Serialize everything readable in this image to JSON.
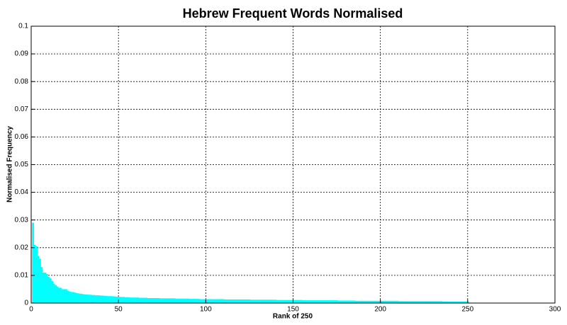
{
  "chart_data": {
    "type": "bar",
    "title": "Hebrew Frequent Words Normalised",
    "x_label": "Rank of 250",
    "y_label": "Normalised Frequency",
    "x": [
      1,
      2,
      3,
      4,
      5,
      6,
      7,
      8,
      9,
      10,
      11,
      12,
      13,
      14,
      15,
      16,
      17,
      18,
      19,
      20,
      21,
      22,
      23,
      24,
      25,
      26,
      27,
      28,
      29,
      30,
      31,
      32,
      33,
      34,
      35,
      36,
      37,
      38,
      39,
      40,
      41,
      42,
      43,
      44,
      45,
      46,
      47,
      48,
      49,
      50,
      51,
      52,
      53,
      54,
      55,
      56,
      57,
      58,
      59,
      60,
      61,
      62,
      63,
      64,
      65,
      66,
      67,
      68,
      69,
      70,
      71,
      72,
      73,
      74,
      75,
      76,
      77,
      78,
      79,
      80,
      81,
      82,
      83,
      84,
      85,
      86,
      87,
      88,
      89,
      90,
      91,
      92,
      93,
      94,
      95,
      96,
      97,
      98,
      99,
      100,
      101,
      102,
      103,
      104,
      105,
      106,
      107,
      108,
      109,
      110,
      111,
      112,
      113,
      114,
      115,
      116,
      117,
      118,
      119,
      120,
      121,
      122,
      123,
      124,
      125,
      126,
      127,
      128,
      129,
      130,
      131,
      132,
      133,
      134,
      135,
      136,
      137,
      138,
      139,
      140,
      141,
      142,
      143,
      144,
      145,
      146,
      147,
      148,
      149,
      150,
      151,
      152,
      153,
      154,
      155,
      156,
      157,
      158,
      159,
      160,
      161,
      162,
      163,
      164,
      165,
      166,
      167,
      168,
      169,
      170,
      171,
      172,
      173,
      174,
      175,
      176,
      177,
      178,
      179,
      180,
      181,
      182,
      183,
      184,
      185,
      186,
      187,
      188,
      189,
      190,
      191,
      192,
      193,
      194,
      195,
      196,
      197,
      198,
      199,
      200,
      201,
      202,
      203,
      204,
      205,
      206,
      207,
      208,
      209,
      210,
      211,
      212,
      213,
      214,
      215,
      216,
      217,
      218,
      219,
      220,
      221,
      222,
      223,
      224,
      225,
      226,
      227,
      228,
      229,
      230,
      231,
      232,
      233,
      234,
      235,
      236,
      237,
      238,
      239,
      240,
      241,
      242,
      243,
      244,
      245,
      246,
      247,
      248,
      249,
      250
    ],
    "values": [
      0.029,
      0.021,
      0.0205,
      0.017,
      0.016,
      0.013,
      0.011,
      0.011,
      0.0105,
      0.0095,
      0.009,
      0.008,
      0.007,
      0.0065,
      0.006,
      0.0055,
      0.0055,
      0.005,
      0.005,
      0.005,
      0.0045,
      0.0042,
      0.004,
      0.004,
      0.0038,
      0.0036,
      0.0035,
      0.0034,
      0.0033,
      0.0032,
      0.0031,
      0.0031,
      0.003,
      0.003,
      0.0029,
      0.0029,
      0.0028,
      0.0028,
      0.0028,
      0.0027,
      0.0027,
      0.0026,
      0.0026,
      0.0025,
      0.0025,
      0.0025,
      0.0024,
      0.0024,
      0.0023,
      0.0023,
      0.0022,
      0.0022,
      0.0022,
      0.0021,
      0.0021,
      0.0021,
      0.002,
      0.002,
      0.002,
      0.002,
      0.002,
      0.0019,
      0.0019,
      0.0019,
      0.0019,
      0.0019,
      0.0018,
      0.0018,
      0.0018,
      0.0018,
      0.0018,
      0.0018,
      0.0018,
      0.0017,
      0.0017,
      0.0017,
      0.0017,
      0.0017,
      0.0017,
      0.0017,
      0.0017,
      0.0017,
      0.0016,
      0.0016,
      0.0016,
      0.0016,
      0.0016,
      0.0016,
      0.0016,
      0.0016,
      0.0015,
      0.0015,
      0.0015,
      0.0015,
      0.0015,
      0.0015,
      0.0014,
      0.0014,
      0.0014,
      0.0014,
      0.0014,
      0.0014,
      0.0014,
      0.0014,
      0.0014,
      0.0014,
      0.0014,
      0.0014,
      0.0014,
      0.0014,
      0.0013,
      0.0013,
      0.0013,
      0.0013,
      0.0013,
      0.0013,
      0.0013,
      0.0013,
      0.0013,
      0.0013,
      0.0013,
      0.0013,
      0.0013,
      0.0013,
      0.0013,
      0.0012,
      0.0012,
      0.0012,
      0.0012,
      0.0012,
      0.0012,
      0.0012,
      0.0012,
      0.0012,
      0.0012,
      0.0012,
      0.0012,
      0.0012,
      0.0012,
      0.0012,
      0.0011,
      0.0011,
      0.0011,
      0.0011,
      0.0011,
      0.0011,
      0.0011,
      0.0011,
      0.0011,
      0.0011,
      0.0011,
      0.0011,
      0.0011,
      0.0011,
      0.0011,
      0.001,
      0.001,
      0.001,
      0.001,
      0.001,
      0.001,
      0.001,
      0.001,
      0.001,
      0.001,
      0.001,
      0.001,
      0.001,
      0.001,
      0.001,
      0.001,
      0.001,
      0.001,
      0.001,
      0.001,
      0.0009,
      0.0009,
      0.0009,
      0.0009,
      0.0009,
      0.0009,
      0.0009,
      0.0009,
      0.0009,
      0.0009,
      0.0008,
      0.0008,
      0.0008,
      0.0008,
      0.0008,
      0.0008,
      0.0008,
      0.0008,
      0.0008,
      0.0008,
      0.0008,
      0.0008,
      0.0008,
      0.0008,
      0.0008,
      0.0008,
      0.0008,
      0.0008,
      0.0008,
      0.0008,
      0.0008,
      0.0008,
      0.0008,
      0.0008,
      0.0008,
      0.0007,
      0.0007,
      0.0007,
      0.0007,
      0.0007,
      0.0007,
      0.0007,
      0.0007,
      0.0007,
      0.0007,
      0.0007,
      0.0007,
      0.0007,
      0.0007,
      0.0007,
      0.0007,
      0.0007,
      0.0007,
      0.0007,
      0.0007,
      0.0007,
      0.0007,
      0.0007,
      0.0007,
      0.0007,
      0.0006,
      0.0006,
      0.0006,
      0.0006,
      0.0006,
      0.0006,
      0.0006,
      0.0006,
      0.0006,
      0.0006,
      0.0006,
      0.0006,
      0.0006,
      0.0006,
      0.0006
    ],
    "color": "#00ffff",
    "xlim": [
      0,
      300
    ],
    "xticks": [
      0,
      50,
      100,
      150,
      200,
      250,
      300
    ],
    "ylim": [
      0,
      0.1
    ],
    "yticks": [
      0,
      0.01,
      0.02,
      0.03,
      0.04,
      0.05,
      0.06,
      0.07,
      0.08,
      0.09,
      0.1
    ],
    "grid": true
  }
}
